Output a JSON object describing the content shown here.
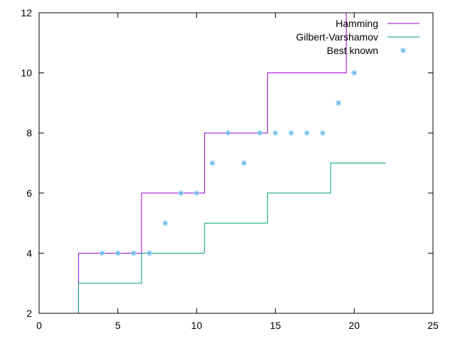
{
  "chart_data": {
    "type": "line",
    "title": "",
    "xlabel": "",
    "ylabel": "",
    "xlim": [
      0,
      25
    ],
    "ylim": [
      2,
      12
    ],
    "xticks": [
      0,
      5,
      10,
      15,
      20,
      25
    ],
    "yticks": [
      2,
      4,
      6,
      8,
      10,
      12
    ],
    "grid": false,
    "legend_position": "top-right",
    "series": [
      {
        "name": "Hamming",
        "color": "#9400d3",
        "style": "step",
        "points": [
          [
            2.5,
            2
          ],
          [
            2.5,
            4
          ],
          [
            6.5,
            4
          ],
          [
            6.5,
            6
          ],
          [
            10.5,
            6
          ],
          [
            10.5,
            8
          ],
          [
            14.5,
            8
          ],
          [
            14.5,
            10
          ],
          [
            19.5,
            10
          ],
          [
            19.5,
            12
          ]
        ]
      },
      {
        "name": "Gilbert-Varshamov",
        "color": "#009e73",
        "style": "step",
        "points": [
          [
            2.5,
            2
          ],
          [
            2.5,
            3
          ],
          [
            6.5,
            3
          ],
          [
            6.5,
            4
          ],
          [
            10.5,
            4
          ],
          [
            10.5,
            5
          ],
          [
            14.5,
            5
          ],
          [
            14.5,
            6
          ],
          [
            18.5,
            6
          ],
          [
            18.5,
            7
          ],
          [
            22,
            7
          ]
        ]
      },
      {
        "name": "Best known",
        "color": "#56b4e9",
        "style": "marker",
        "points": [
          [
            4,
            4
          ],
          [
            5,
            4
          ],
          [
            6,
            4
          ],
          [
            7,
            4
          ],
          [
            8,
            5
          ],
          [
            9,
            6
          ],
          [
            10,
            6
          ],
          [
            11,
            7
          ],
          [
            12,
            8
          ],
          [
            13,
            7
          ],
          [
            14,
            8
          ],
          [
            15,
            8
          ],
          [
            16,
            8
          ],
          [
            17,
            8
          ],
          [
            18,
            8
          ],
          [
            19,
            9
          ],
          [
            20,
            10
          ]
        ]
      }
    ]
  }
}
